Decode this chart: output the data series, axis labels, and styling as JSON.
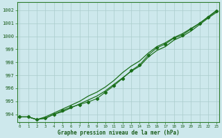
{
  "title": "Graphe pression niveau de la mer (hPa)",
  "x_labels": [
    0,
    1,
    2,
    3,
    4,
    5,
    6,
    7,
    8,
    9,
    10,
    11,
    12,
    13,
    14,
    15,
    16,
    17,
    18,
    19,
    20,
    21,
    22,
    23
  ],
  "xlim": [
    -0.3,
    23.3
  ],
  "ylim": [
    993.4,
    1002.6
  ],
  "yticks": [
    994,
    995,
    996,
    997,
    998,
    999,
    1000,
    1001,
    1002
  ],
  "line_color": "#1a6e1a",
  "bg_color": "#cde8ec",
  "grid_color": "#aacccc",
  "series_upper": [
    993.8,
    993.8,
    993.6,
    993.8,
    994.1,
    994.4,
    994.7,
    995.0,
    995.4,
    995.7,
    996.1,
    996.6,
    997.2,
    997.7,
    998.1,
    998.7,
    999.2,
    999.5,
    999.9,
    1000.2,
    1000.6,
    1001.0,
    1001.5,
    1002.0
  ],
  "series_lower": [
    993.8,
    993.8,
    993.6,
    993.7,
    994.0,
    994.2,
    994.5,
    994.8,
    995.1,
    995.4,
    995.8,
    996.3,
    996.8,
    997.3,
    997.7,
    998.4,
    998.9,
    999.2,
    999.7,
    1000.0,
    1000.4,
    1000.9,
    1001.4,
    1001.85
  ],
  "series_marker": [
    993.8,
    993.8,
    993.6,
    993.7,
    994.0,
    994.3,
    994.55,
    994.75,
    994.95,
    995.2,
    995.7,
    996.2,
    996.75,
    997.35,
    997.8,
    998.55,
    999.1,
    999.4,
    999.85,
    1000.1,
    1000.55,
    1001.0,
    1001.47,
    1001.95
  ]
}
